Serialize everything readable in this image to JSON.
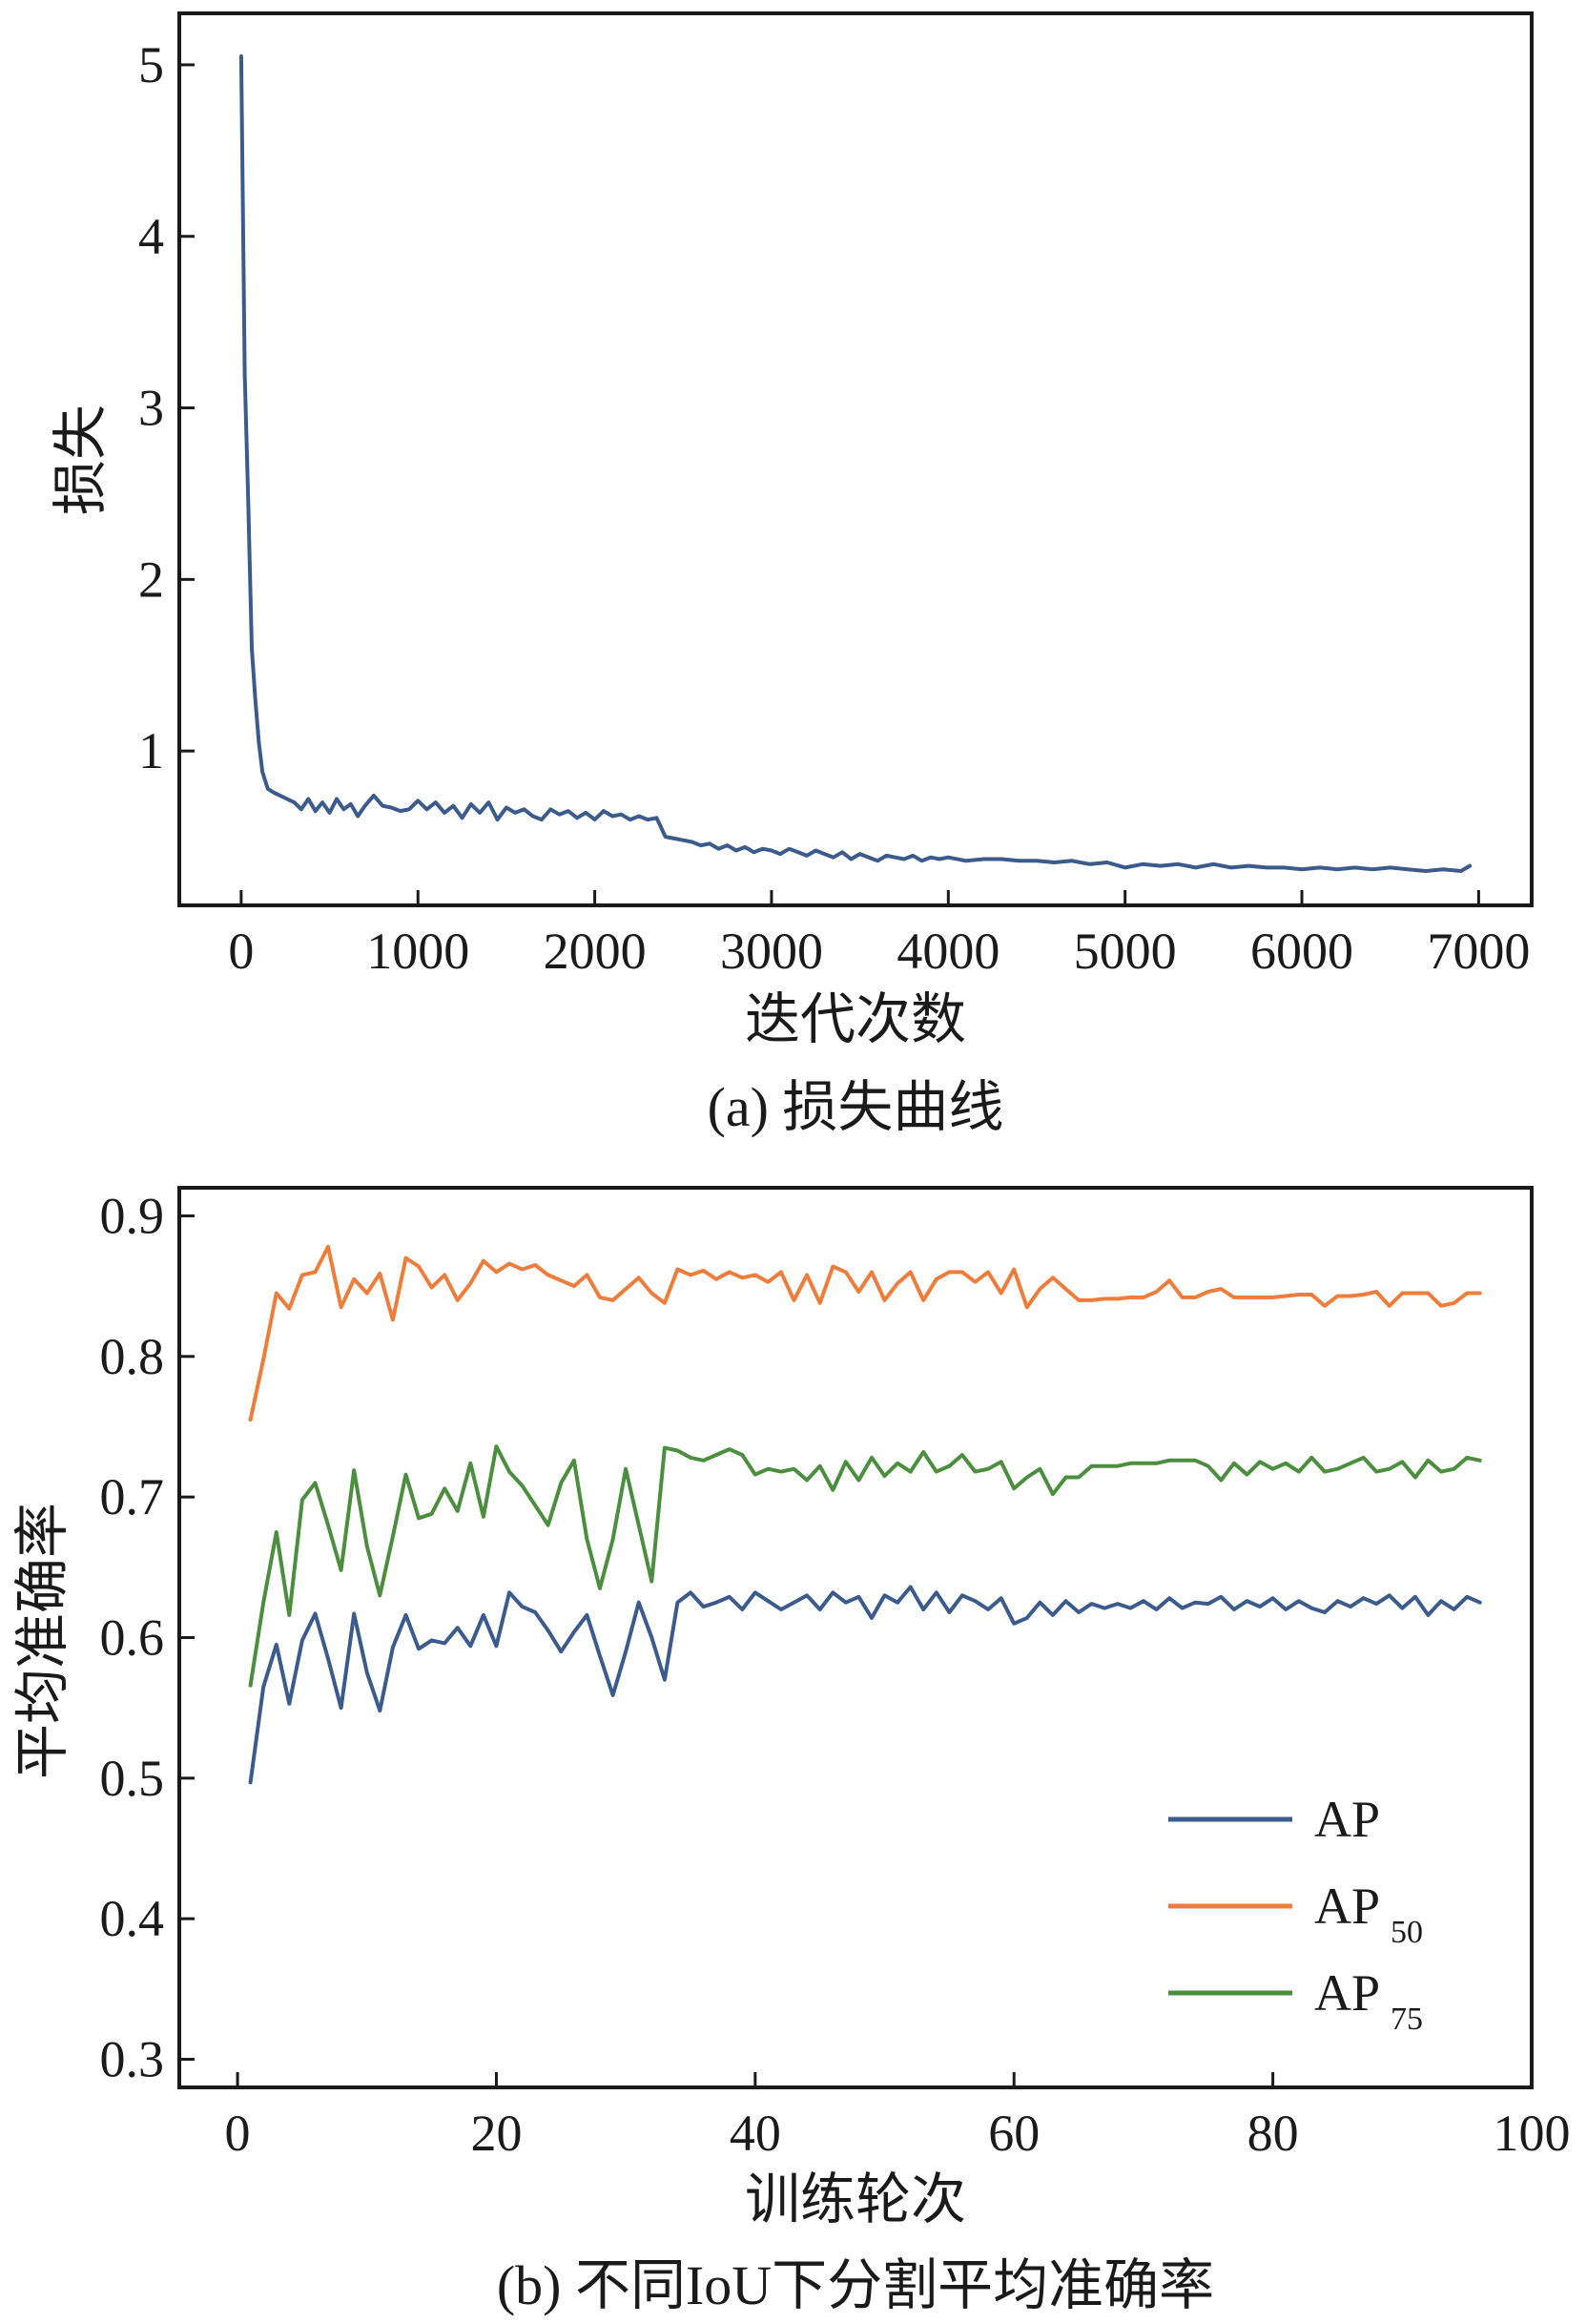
{
  "chart_data": [
    {
      "type": "line",
      "xlabel": "迭代次数",
      "ylabel": "损失",
      "caption": "(a) 损失曲线",
      "xlim": [
        -350,
        7300
      ],
      "ylim": [
        0.1,
        5.3
      ],
      "xticks": [
        0,
        1000,
        2000,
        3000,
        4000,
        5000,
        6000,
        7000
      ],
      "yticks": [
        1,
        2,
        3,
        4,
        5
      ],
      "grid": false,
      "series": [
        {
          "color": "#3b5b8c",
          "x": [
            0,
            20,
            40,
            60,
            80,
            100,
            120,
            150,
            180,
            220,
            260,
            300,
            340,
            380,
            420,
            460,
            500,
            540,
            580,
            620,
            660,
            700,
            750,
            800,
            850,
            900,
            950,
            1000,
            1050,
            1100,
            1150,
            1200,
            1250,
            1300,
            1350,
            1400,
            1450,
            1500,
            1550,
            1600,
            1650,
            1700,
            1750,
            1800,
            1850,
            1900,
            1950,
            2000,
            2050,
            2100,
            2150,
            2200,
            2250,
            2300,
            2350,
            2400,
            2450,
            2500,
            2550,
            2600,
            2650,
            2700,
            2750,
            2800,
            2850,
            2900,
            2950,
            3000,
            3050,
            3100,
            3150,
            3200,
            3250,
            3300,
            3350,
            3400,
            3450,
            3500,
            3550,
            3600,
            3650,
            3700,
            3750,
            3800,
            3850,
            3900,
            3950,
            4000,
            4100,
            4200,
            4300,
            4400,
            4500,
            4600,
            4700,
            4800,
            4900,
            5000,
            5100,
            5200,
            5300,
            5400,
            5500,
            5600,
            5700,
            5800,
            5900,
            6000,
            6100,
            6200,
            6300,
            6400,
            6500,
            6600,
            6700,
            6800,
            6900,
            6950
          ],
          "y": [
            5.05,
            3.2,
            2.45,
            1.6,
            1.3,
            1.05,
            0.88,
            0.78,
            0.76,
            0.74,
            0.72,
            0.7,
            0.66,
            0.72,
            0.65,
            0.7,
            0.64,
            0.72,
            0.66,
            0.69,
            0.62,
            0.68,
            0.74,
            0.68,
            0.67,
            0.65,
            0.66,
            0.71,
            0.66,
            0.7,
            0.64,
            0.68,
            0.61,
            0.69,
            0.64,
            0.7,
            0.6,
            0.67,
            0.64,
            0.66,
            0.62,
            0.6,
            0.66,
            0.63,
            0.65,
            0.61,
            0.64,
            0.6,
            0.65,
            0.62,
            0.63,
            0.6,
            0.62,
            0.6,
            0.61,
            0.5,
            0.49,
            0.48,
            0.47,
            0.45,
            0.46,
            0.43,
            0.45,
            0.42,
            0.44,
            0.41,
            0.43,
            0.42,
            0.4,
            0.43,
            0.41,
            0.39,
            0.42,
            0.4,
            0.38,
            0.41,
            0.37,
            0.4,
            0.38,
            0.36,
            0.39,
            0.38,
            0.37,
            0.39,
            0.36,
            0.38,
            0.37,
            0.38,
            0.36,
            0.37,
            0.37,
            0.36,
            0.36,
            0.35,
            0.36,
            0.34,
            0.35,
            0.32,
            0.34,
            0.33,
            0.34,
            0.32,
            0.34,
            0.32,
            0.33,
            0.32,
            0.32,
            0.31,
            0.32,
            0.31,
            0.32,
            0.31,
            0.32,
            0.31,
            0.3,
            0.31,
            0.3,
            0.33
          ]
        }
      ]
    },
    {
      "type": "line",
      "xlabel": "训练轮次",
      "ylabel": "平均准确率",
      "caption": "(b) 不同IoU下分割平均准确率",
      "xlim": [
        -4.5,
        100
      ],
      "ylim": [
        0.28,
        0.92
      ],
      "xticks": [
        0,
        20,
        40,
        60,
        80,
        100
      ],
      "yticks": [
        0.3,
        0.4,
        0.5,
        0.6,
        0.7,
        0.8,
        0.9
      ],
      "grid": false,
      "legend_position": "lower-right",
      "legend": [
        {
          "name": "AP",
          "base": "AP",
          "sub": ""
        },
        {
          "name": "AP50",
          "base": "AP",
          "sub": "50"
        },
        {
          "name": "AP75",
          "base": "AP",
          "sub": "75"
        }
      ],
      "x": [
        1,
        2,
        3,
        4,
        5,
        6,
        7,
        8,
        9,
        10,
        11,
        12,
        13,
        14,
        15,
        16,
        17,
        18,
        19,
        20,
        21,
        22,
        23,
        24,
        25,
        26,
        27,
        28,
        29,
        30,
        31,
        32,
        33,
        34,
        35,
        36,
        37,
        38,
        39,
        40,
        41,
        42,
        43,
        44,
        45,
        46,
        47,
        48,
        49,
        50,
        51,
        52,
        53,
        54,
        55,
        56,
        57,
        58,
        59,
        60,
        61,
        62,
        63,
        64,
        65,
        66,
        67,
        68,
        69,
        70,
        71,
        72,
        73,
        74,
        75,
        76,
        77,
        78,
        79,
        80,
        81,
        82,
        83,
        84,
        85,
        86,
        87,
        88,
        89,
        90,
        91,
        92,
        93,
        94,
        95,
        96
      ],
      "series": [
        {
          "name": "AP",
          "color": "#3b5b8c",
          "values": [
            0.497,
            0.565,
            0.595,
            0.553,
            0.598,
            0.617,
            0.585,
            0.55,
            0.617,
            0.575,
            0.548,
            0.593,
            0.616,
            0.592,
            0.598,
            0.596,
            0.607,
            0.594,
            0.616,
            0.594,
            0.632,
            0.622,
            0.618,
            0.605,
            0.59,
            0.604,
            0.616,
            0.587,
            0.559,
            0.59,
            0.625,
            0.6,
            0.57,
            0.625,
            0.632,
            0.622,
            0.625,
            0.629,
            0.62,
            0.632,
            0.626,
            0.62,
            0.625,
            0.63,
            0.62,
            0.632,
            0.625,
            0.629,
            0.614,
            0.63,
            0.625,
            0.636,
            0.62,
            0.632,
            0.618,
            0.63,
            0.626,
            0.62,
            0.628,
            0.61,
            0.614,
            0.625,
            0.616,
            0.626,
            0.618,
            0.624,
            0.621,
            0.624,
            0.621,
            0.626,
            0.62,
            0.628,
            0.621,
            0.625,
            0.624,
            0.629,
            0.62,
            0.626,
            0.622,
            0.628,
            0.62,
            0.626,
            0.621,
            0.618,
            0.626,
            0.622,
            0.628,
            0.624,
            0.63,
            0.621,
            0.629,
            0.616,
            0.626,
            0.62,
            0.629,
            0.625
          ]
        },
        {
          "name": "AP50",
          "color": "#ee7d3c",
          "values": [
            0.755,
            0.798,
            0.845,
            0.834,
            0.858,
            0.86,
            0.878,
            0.835,
            0.855,
            0.845,
            0.859,
            0.826,
            0.87,
            0.864,
            0.849,
            0.858,
            0.84,
            0.852,
            0.868,
            0.86,
            0.866,
            0.862,
            0.865,
            0.858,
            0.854,
            0.85,
            0.858,
            0.842,
            0.84,
            0.848,
            0.856,
            0.845,
            0.838,
            0.862,
            0.858,
            0.861,
            0.855,
            0.86,
            0.856,
            0.858,
            0.853,
            0.86,
            0.84,
            0.858,
            0.838,
            0.864,
            0.86,
            0.846,
            0.86,
            0.84,
            0.852,
            0.86,
            0.84,
            0.855,
            0.86,
            0.86,
            0.853,
            0.86,
            0.845,
            0.862,
            0.835,
            0.848,
            0.856,
            0.848,
            0.84,
            0.84,
            0.841,
            0.841,
            0.842,
            0.842,
            0.846,
            0.854,
            0.842,
            0.842,
            0.846,
            0.848,
            0.842,
            0.842,
            0.842,
            0.842,
            0.843,
            0.844,
            0.844,
            0.836,
            0.843,
            0.843,
            0.844,
            0.846,
            0.836,
            0.845,
            0.845,
            0.845,
            0.836,
            0.838,
            0.845,
            0.845
          ]
        },
        {
          "name": "AP75",
          "color": "#4b8e3e",
          "values": [
            0.566,
            0.625,
            0.675,
            0.616,
            0.698,
            0.71,
            0.68,
            0.648,
            0.719,
            0.665,
            0.63,
            0.672,
            0.716,
            0.685,
            0.688,
            0.706,
            0.69,
            0.724,
            0.686,
            0.736,
            0.718,
            0.708,
            0.694,
            0.68,
            0.71,
            0.726,
            0.67,
            0.635,
            0.67,
            0.72,
            0.68,
            0.64,
            0.735,
            0.733,
            0.728,
            0.726,
            0.73,
            0.734,
            0.73,
            0.716,
            0.72,
            0.718,
            0.72,
            0.712,
            0.722,
            0.705,
            0.725,
            0.712,
            0.728,
            0.715,
            0.724,
            0.718,
            0.732,
            0.718,
            0.722,
            0.73,
            0.718,
            0.72,
            0.725,
            0.706,
            0.714,
            0.72,
            0.702,
            0.714,
            0.714,
            0.722,
            0.722,
            0.722,
            0.724,
            0.724,
            0.724,
            0.726,
            0.726,
            0.726,
            0.722,
            0.712,
            0.724,
            0.716,
            0.725,
            0.72,
            0.724,
            0.718,
            0.728,
            0.718,
            0.72,
            0.724,
            0.728,
            0.718,
            0.72,
            0.725,
            0.714,
            0.726,
            0.718,
            0.72,
            0.728,
            0.726
          ]
        }
      ]
    }
  ]
}
